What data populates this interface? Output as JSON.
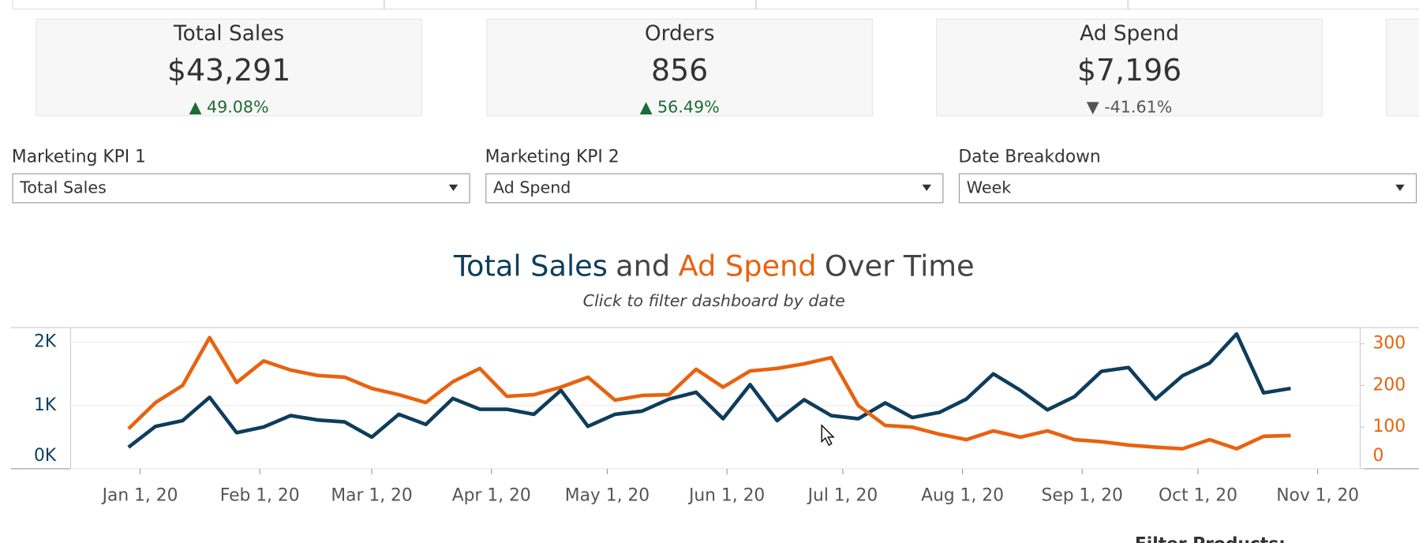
{
  "kpis": [
    {
      "title": "Total Sales",
      "value": "$43,291",
      "delta": "▲ 49.08%",
      "delta_color": "#1e6b35"
    },
    {
      "title": "Orders",
      "value": "856",
      "delta": "▲ 56.49%",
      "delta_color": "#1e6b35"
    },
    {
      "title": "Ad Spend",
      "value": "$7,196",
      "delta": "▼ -41.61%",
      "delta_color": "#555555"
    }
  ],
  "filters": [
    {
      "label": "Marketing KPI 1",
      "value": "Total Sales"
    },
    {
      "label": "Marketing KPI 2",
      "value": "Ad Spend"
    },
    {
      "label": "Date Breakdown",
      "value": "Week"
    }
  ],
  "footer_label": "Filter Products:",
  "chart_data": {
    "type": "line",
    "title_parts": [
      "Total Sales",
      "and",
      "Ad Spend",
      "Over Time"
    ],
    "subtitle": "Click to filter dashboard by date",
    "x": [
      "2019-12-29",
      "2020-01-05",
      "2020-01-12",
      "2020-01-19",
      "2020-01-26",
      "2020-02-02",
      "2020-02-09",
      "2020-02-16",
      "2020-02-23",
      "2020-03-01",
      "2020-03-08",
      "2020-03-15",
      "2020-03-22",
      "2020-03-29",
      "2020-04-05",
      "2020-04-12",
      "2020-04-19",
      "2020-04-26",
      "2020-05-03",
      "2020-05-10",
      "2020-05-17",
      "2020-05-24",
      "2020-05-31",
      "2020-06-07",
      "2020-06-14",
      "2020-06-21",
      "2020-06-28",
      "2020-07-05",
      "2020-07-12",
      "2020-07-19",
      "2020-07-26",
      "2020-08-02",
      "2020-08-09",
      "2020-08-16",
      "2020-08-23",
      "2020-08-30",
      "2020-09-06",
      "2020-09-13",
      "2020-09-20",
      "2020-09-27",
      "2020-10-04",
      "2020-10-11",
      "2020-10-18",
      "2020-10-25"
    ],
    "series": [
      {
        "name": "Total Sales",
        "color": "#0e3d5c",
        "axis": "y",
        "values": [
          340,
          670,
          760,
          1130,
          570,
          660,
          840,
          770,
          740,
          500,
          860,
          700,
          1110,
          940,
          940,
          860,
          1240,
          670,
          860,
          910,
          1100,
          1210,
          790,
          1330,
          760,
          1090,
          840,
          790,
          1040,
          810,
          890,
          1100,
          1500,
          1240,
          930,
          1140,
          1540,
          1600,
          1100,
          1470,
          1670,
          2130,
          1200,
          1270
        ]
      },
      {
        "name": "Ad Spend",
        "color": "#e8620e",
        "axis": "y2",
        "values": [
          96,
          159,
          200,
          315,
          207,
          259,
          237,
          224,
          220,
          193,
          178,
          159,
          209,
          241,
          174,
          178,
          196,
          220,
          165,
          176,
          178,
          239,
          196,
          235,
          241,
          252,
          267,
          152,
          104,
          100,
          83,
          70,
          91,
          76,
          91,
          70,
          65,
          57,
          52,
          48,
          70,
          48,
          78,
          80
        ]
      }
    ],
    "xlim": [
      "2019-12-14",
      "2020-11-12"
    ],
    "xticks": [
      {
        "value": "2020-01-01",
        "label": "Jan 1, 20"
      },
      {
        "value": "2020-02-01",
        "label": "Feb 1, 20"
      },
      {
        "value": "2020-03-01",
        "label": "Mar 1, 20"
      },
      {
        "value": "2020-04-01",
        "label": "Apr 1, 20"
      },
      {
        "value": "2020-05-01",
        "label": "May 1, 20"
      },
      {
        "value": "2020-06-01",
        "label": "Jun 1, 20"
      },
      {
        "value": "2020-07-01",
        "label": "Jul 1, 20"
      },
      {
        "value": "2020-08-01",
        "label": "Aug 1, 20"
      },
      {
        "value": "2020-09-01",
        "label": "Sep 1, 20"
      },
      {
        "value": "2020-10-01",
        "label": "Oct 1, 20"
      },
      {
        "value": "2020-11-01",
        "label": "Nov 1, 20"
      }
    ],
    "ylim": [
      0,
      2230
    ],
    "yticks": [
      {
        "value": 0,
        "label": "0K"
      },
      {
        "value": 1000,
        "label": "1K"
      },
      {
        "value": 2000,
        "label": "2K"
      }
    ],
    "y2lim": [
      0,
      339
    ],
    "y2ticks": [
      0,
      100,
      200,
      300
    ],
    "grid": true
  }
}
